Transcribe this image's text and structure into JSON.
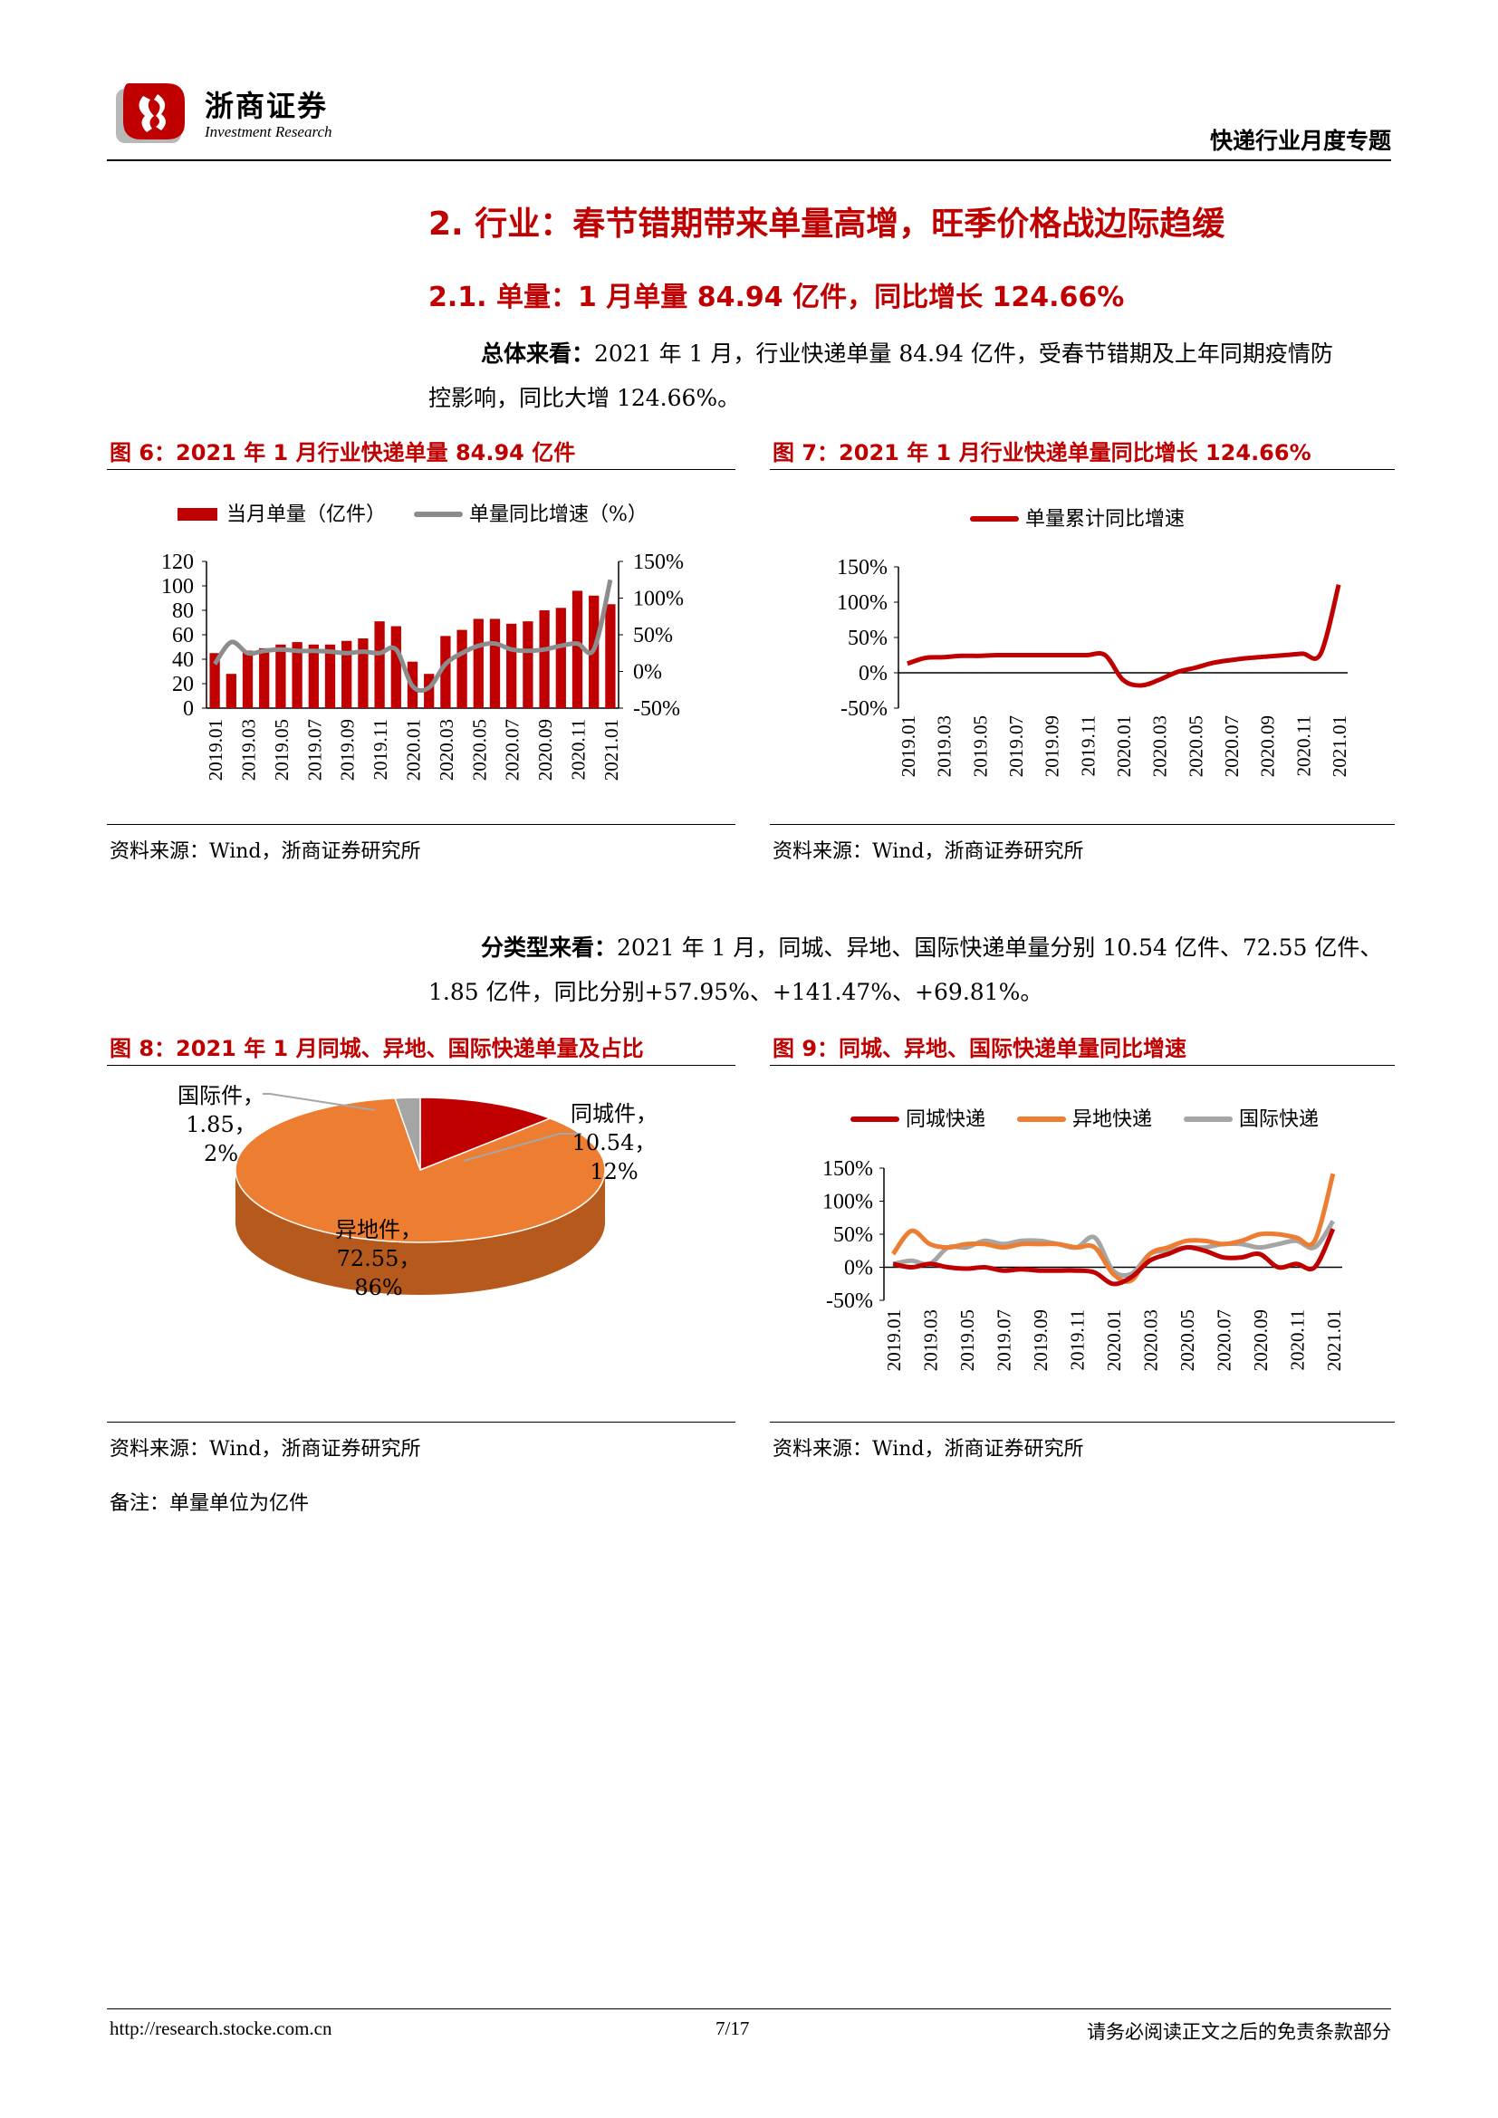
{
  "header": {
    "logo_cn": "浙商证券",
    "logo_en": "Investment Research",
    "report_title": "快递行业月度专题",
    "colors": {
      "brand_red": "#c00000",
      "logo_gray": "#b0b0b0"
    }
  },
  "section": {
    "h1": "2. 行业：春节错期带来单量高增，旺季价格战边际趋缓",
    "h2": "2.1. 单量：1 月单量 84.94 亿件，同比增长 124.66%"
  },
  "para1": {
    "lead": "总体来看：",
    "line1": "2021 年 1 月，行业快递单量 84.94 亿件，受春节错期及上年同期疫情防",
    "line2": "控影响，同比大增 124.66%。"
  },
  "para2": {
    "lead": "分类型来看：",
    "line1": "2021 年 1 月，同城、异地、国际快递单量分别 10.54 亿件、72.55 亿件、",
    "line2": "1.85 亿件，同比分别+57.95%、+141.47%、+69.81%。"
  },
  "figures": {
    "fig6": {
      "title": "图 6：2021 年 1 月行业快递单量 84.94 亿件",
      "source": "资料来源：Wind，浙商证券研究所"
    },
    "fig7": {
      "title": "图 7：2021 年 1 月行业快递单量同比增长 124.66%",
      "source": "资料来源：Wind，浙商证券研究所"
    },
    "fig8": {
      "title": "图 8：2021 年 1 月同城、异地、国际快递单量及占比",
      "source": "资料来源：Wind，浙商证券研究所"
    },
    "fig9": {
      "title": "图 9：同城、异地、国际快递单量同比增速",
      "source": "资料来源：Wind，浙商证券研究所"
    }
  },
  "note": "备注：单量单位为亿件",
  "footer": {
    "url": "http://research.stocke.com.cn",
    "page": "7/17",
    "disclaimer": "请务必阅读正文之后的免责条款部分"
  },
  "chart_data": [
    {
      "id": "fig6",
      "type": "bar+line",
      "categories": [
        "2019.01",
        "2019.02",
        "2019.03",
        "2019.04",
        "2019.05",
        "2019.06",
        "2019.07",
        "2019.08",
        "2019.09",
        "2019.10",
        "2019.11",
        "2019.12",
        "2020.01",
        "2020.02",
        "2020.03",
        "2020.04",
        "2020.05",
        "2020.06",
        "2020.07",
        "2020.08",
        "2020.09",
        "2020.10",
        "2020.11",
        "2020.12",
        "2021.01"
      ],
      "tick_labels": [
        "2019.01",
        "2019.03",
        "2019.05",
        "2019.07",
        "2019.09",
        "2019.11",
        "2020.01",
        "2020.03",
        "2020.05",
        "2020.07",
        "2020.09",
        "2020.11",
        "2021.01"
      ],
      "series": [
        {
          "name": "当月单量（亿件）",
          "type": "bar",
          "axis": "left",
          "color": "#c00000",
          "values": [
            45,
            28,
            47,
            49,
            52,
            54,
            52,
            52,
            55,
            57,
            71,
            67,
            38,
            28,
            59,
            64,
            73,
            73,
            69,
            71,
            80,
            82,
            96,
            92,
            85
          ]
        },
        {
          "name": "单量同比增速（%）",
          "type": "line",
          "axis": "right",
          "color": "#8c8c8c",
          "values": [
            10,
            40,
            25,
            28,
            30,
            28,
            28,
            27,
            25,
            27,
            25,
            30,
            -20,
            -22,
            10,
            25,
            35,
            38,
            30,
            28,
            30,
            35,
            38,
            30,
            125
          ]
        }
      ],
      "ylim_left": [
        0,
        120
      ],
      "yticks_left": [
        0,
        20,
        40,
        60,
        80,
        100,
        120
      ],
      "ylim_right": [
        -50,
        150
      ],
      "yticks_right": [
        "-50%",
        "0%",
        "50%",
        "100%",
        "150%"
      ],
      "legend": "top",
      "grid": false
    },
    {
      "id": "fig7",
      "type": "line",
      "x": [
        "2019.01",
        "2019.02",
        "2019.03",
        "2019.04",
        "2019.05",
        "2019.06",
        "2019.07",
        "2019.08",
        "2019.09",
        "2019.10",
        "2019.11",
        "2019.12",
        "2020.01",
        "2020.02",
        "2020.03",
        "2020.04",
        "2020.05",
        "2020.06",
        "2020.07",
        "2020.08",
        "2020.09",
        "2020.10",
        "2020.11",
        "2020.12",
        "2021.01"
      ],
      "tick_labels": [
        "2019.01",
        "2019.03",
        "2019.05",
        "2019.07",
        "2019.09",
        "2019.11",
        "2020.01",
        "2020.03",
        "2020.05",
        "2020.07",
        "2020.09",
        "2020.11",
        "2021.01"
      ],
      "series": [
        {
          "name": "单量累计同比增速",
          "color": "#c00000",
          "values": [
            13,
            21,
            22,
            24,
            24,
            25,
            25,
            25,
            25,
            25,
            25,
            25,
            -10,
            -18,
            -10,
            1,
            7,
            14,
            18,
            21,
            23,
            25,
            27,
            27,
            124.66
          ]
        }
      ],
      "ylim": [
        -50,
        150
      ],
      "yticks": [
        "-50%",
        "0%",
        "50%",
        "100%",
        "150%"
      ],
      "legend": "top",
      "grid": false
    },
    {
      "id": "fig8",
      "type": "pie",
      "slices": [
        {
          "name": "同城件",
          "value": 10.54,
          "pct": "12%",
          "color": "#c00000"
        },
        {
          "name": "异地件",
          "value": 72.55,
          "pct": "86%",
          "color": "#ed7d31"
        },
        {
          "name": "国际件",
          "value": 1.85,
          "pct": "2%",
          "color": "#a5a5a5"
        }
      ]
    },
    {
      "id": "fig9",
      "type": "line",
      "x": [
        "2019.01",
        "2019.02",
        "2019.03",
        "2019.04",
        "2019.05",
        "2019.06",
        "2019.07",
        "2019.08",
        "2019.09",
        "2019.10",
        "2019.11",
        "2019.12",
        "2020.01",
        "2020.02",
        "2020.03",
        "2020.04",
        "2020.05",
        "2020.06",
        "2020.07",
        "2020.08",
        "2020.09",
        "2020.10",
        "2020.11",
        "2020.12",
        "2021.01"
      ],
      "tick_labels": [
        "2019.01",
        "2019.03",
        "2019.05",
        "2019.07",
        "2019.09",
        "2019.11",
        "2020.01",
        "2020.03",
        "2020.05",
        "2020.07",
        "2020.09",
        "2020.11",
        "2021.01"
      ],
      "series": [
        {
          "name": "同城快递",
          "color": "#c00000",
          "values": [
            5,
            0,
            5,
            0,
            -2,
            0,
            -5,
            -3,
            -5,
            -5,
            -5,
            -8,
            -25,
            -15,
            10,
            20,
            30,
            25,
            15,
            15,
            20,
            0,
            5,
            0,
            57.95
          ]
        },
        {
          "name": "异地快递",
          "color": "#ed7d31",
          "values": [
            20,
            55,
            35,
            30,
            35,
            35,
            30,
            35,
            35,
            35,
            30,
            30,
            -10,
            -20,
            20,
            30,
            40,
            40,
            35,
            40,
            50,
            50,
            45,
            40,
            141.47
          ]
        },
        {
          "name": "国际快递",
          "color": "#a5a5a5",
          "values": [
            5,
            10,
            5,
            30,
            30,
            40,
            35,
            40,
            40,
            35,
            30,
            45,
            -5,
            -10,
            20,
            25,
            30,
            30,
            35,
            35,
            30,
            35,
            40,
            30,
            69.81
          ]
        }
      ],
      "ylim": [
        -50,
        150
      ],
      "yticks": [
        "-50%",
        "0%",
        "50%",
        "100%",
        "150%"
      ],
      "legend": "top",
      "grid": false
    }
  ]
}
